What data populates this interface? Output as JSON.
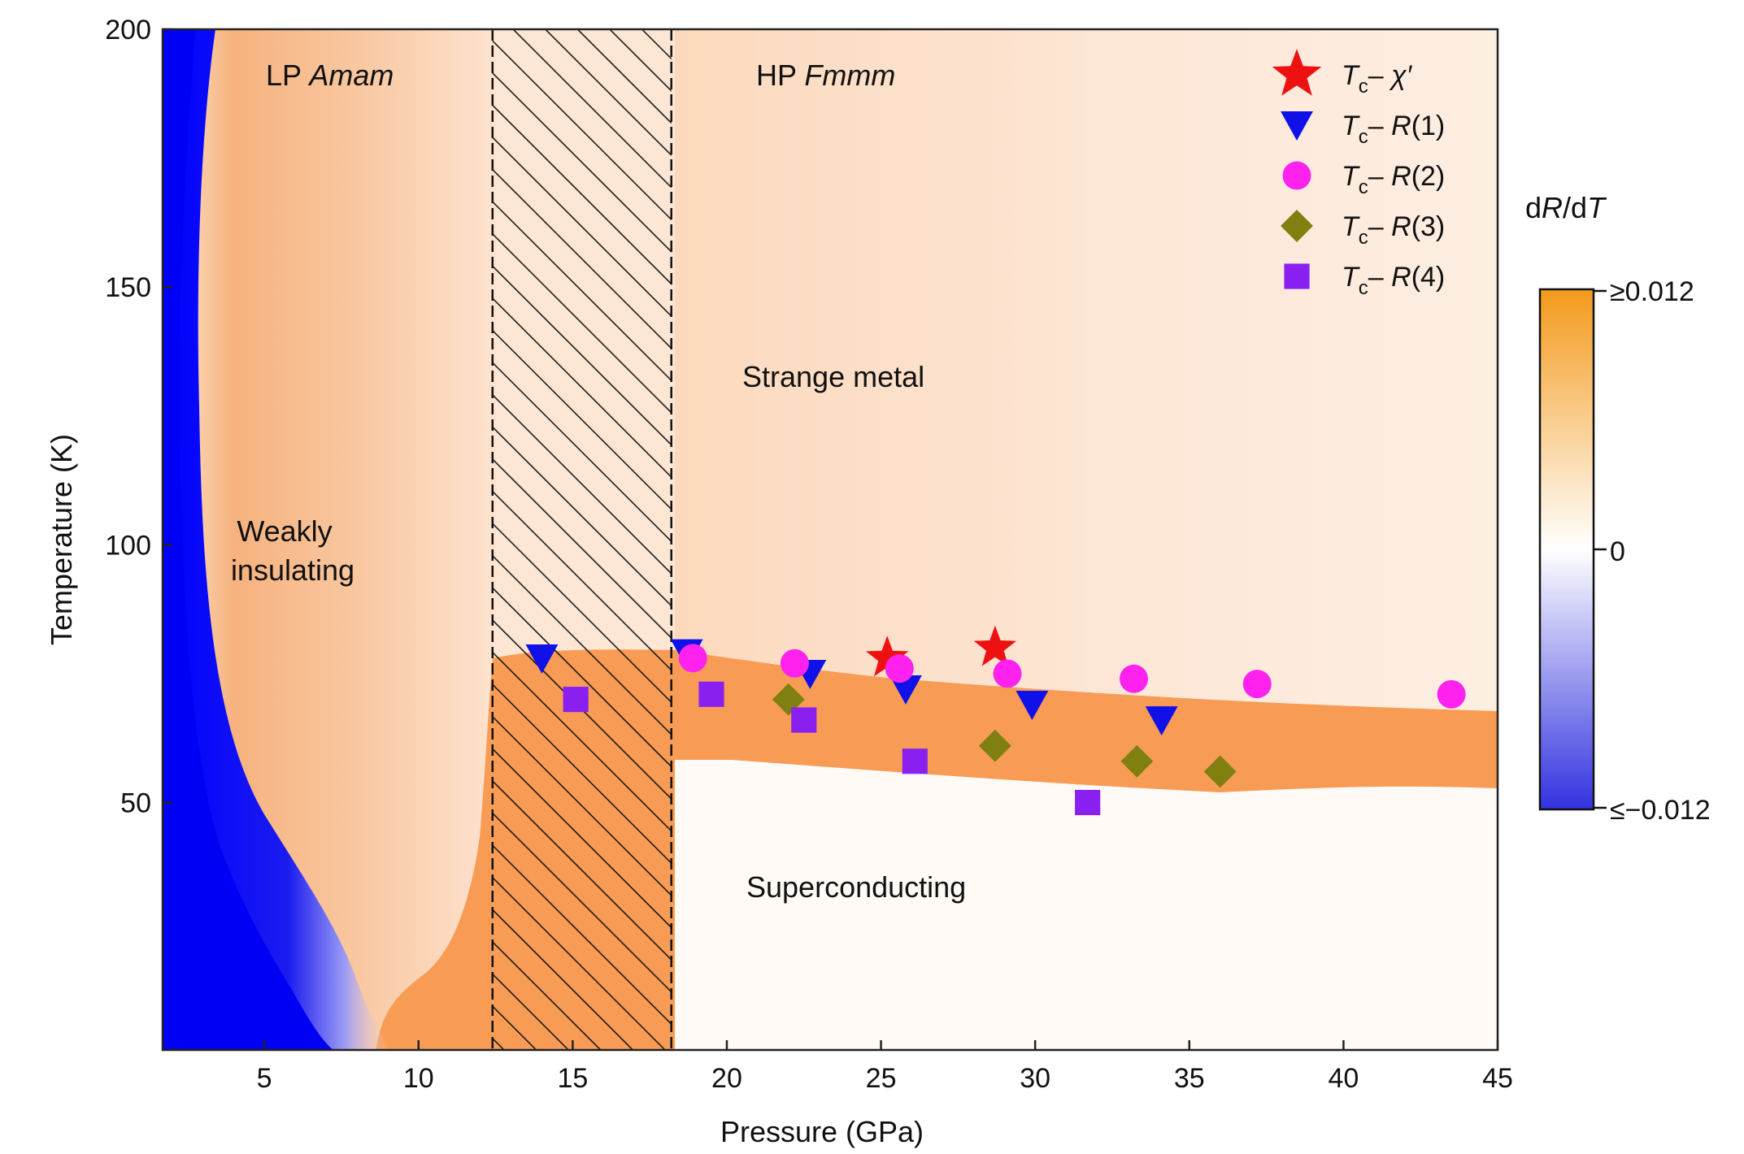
{
  "chart_data": {
    "type": "heatmap",
    "xlabel": "Pressure (GPa)",
    "ylabel": "Temperature (K)",
    "xlim": [
      1.7,
      45
    ],
    "ylim": [
      2,
      200
    ],
    "xticks": [
      5,
      10,
      15,
      20,
      25,
      30,
      35,
      40,
      45
    ],
    "yticks": [
      50,
      100,
      150,
      200
    ],
    "colorbar": {
      "title_italic": "R",
      "title_parts": [
        "d",
        "R",
        "/d",
        "T"
      ],
      "max_label": "≥0.012",
      "mid_label": "0",
      "min_label": "≤−0.012",
      "range": [
        -0.012,
        0.012
      ],
      "colors": {
        "max": "#f39a1c",
        "mid": "#ffffff",
        "min": "#3232e0"
      }
    },
    "hatched_region": {
      "x": [
        12.4,
        18.2
      ]
    },
    "region_labels": {
      "lp_prefix": "LP ",
      "lp_italic": "Amam",
      "hp_prefix": "HP ",
      "hp_italic": "Fmmm",
      "strange_metal": "Strange metal",
      "weakly": "Weakly",
      "insulating": "insulating",
      "superconducting": "Superconducting"
    },
    "legend": {
      "placement": "top-right",
      "entries": [
        {
          "marker": "star",
          "color": "#ee1111",
          "label_base": "T",
          "label_sub": "c",
          "label_dash": "– ",
          "label_var": "χ′",
          "label_paren": ""
        },
        {
          "marker": "triangle-down",
          "color": "#1010e8",
          "label_base": "T",
          "label_sub": "c",
          "label_dash": "– ",
          "label_var": "R",
          "label_paren": "(1)"
        },
        {
          "marker": "circle",
          "color": "#ff22ee",
          "label_base": "T",
          "label_sub": "c",
          "label_dash": "– ",
          "label_var": "R",
          "label_paren": "(2)"
        },
        {
          "marker": "diamond",
          "color": "#808010",
          "label_base": "T",
          "label_sub": "c",
          "label_dash": "– ",
          "label_var": "R",
          "label_paren": "(3)"
        },
        {
          "marker": "square",
          "color": "#8a20f0",
          "label_base": "T",
          "label_sub": "c",
          "label_dash": "– ",
          "label_var": "R",
          "label_paren": "(4)"
        }
      ]
    },
    "series": [
      {
        "marker": "star",
        "color": "#ee1111",
        "x": [
          25.2,
          28.7
        ],
        "y": [
          78,
          80
        ]
      },
      {
        "marker": "triangle-down",
        "color": "#1010e8",
        "x": [
          14.0,
          18.7,
          22.7,
          25.8,
          29.9,
          34.1
        ],
        "y": [
          78,
          79,
          75,
          72,
          69,
          66
        ]
      },
      {
        "marker": "circle",
        "color": "#ff22ee",
        "x": [
          18.9,
          22.2,
          25.6,
          29.1,
          33.2,
          37.2,
          43.5
        ],
        "y": [
          78,
          77,
          76,
          75,
          74,
          73,
          71
        ]
      },
      {
        "marker": "diamond",
        "color": "#808010",
        "x": [
          22.0,
          28.7,
          33.3,
          36.0
        ],
        "y": [
          70,
          61,
          58,
          56
        ]
      },
      {
        "marker": "square",
        "color": "#8a20f0",
        "x": [
          15.1,
          19.5,
          22.5,
          26.1,
          31.7
        ],
        "y": [
          70,
          71,
          66,
          58,
          50
        ]
      }
    ]
  }
}
